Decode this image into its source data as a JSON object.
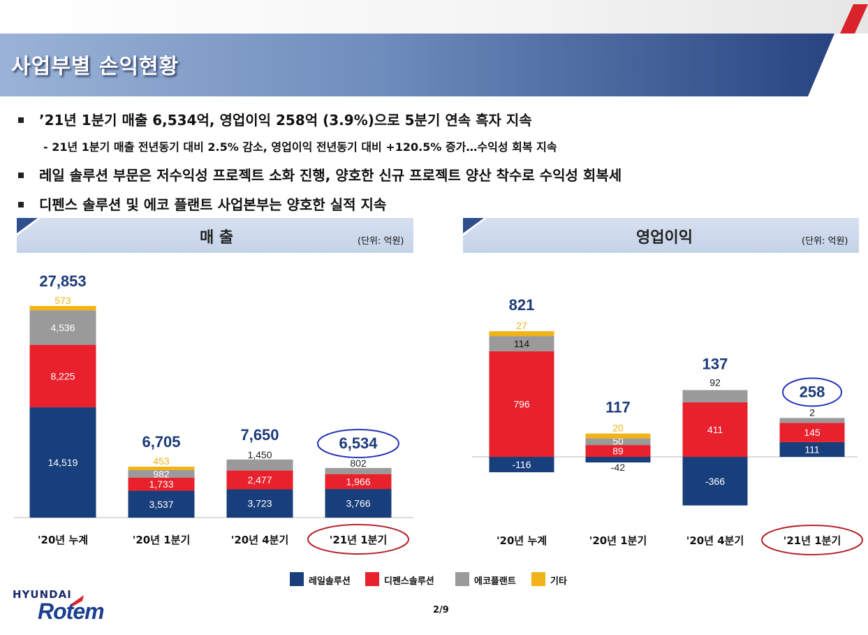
{
  "page": {
    "title": "사업부별 손익현황",
    "page_number": "2/9",
    "logo_top": "HYUNDAI",
    "logo_main": "Rotem"
  },
  "bullets": [
    "’21년 1분기 매출 6,534억, 영업이익 258억 (3.9%)으로 5분기 연속 흑자 지속",
    "- 21년 1분기 매출 전년동기 대비 2.5% 감소, 영업이익 전년동기 대비 +120.5% 증가…수익성 회복 지속",
    "레일 솔루션 부문은 저수익성 프로젝트 소화 진행, 양호한 신규 프로젝트 양산 착수로 수익성 회복세",
    "디펜스 솔루션 및 에코 플랜트 사업본부는 양호한 실적 지속"
  ],
  "colors": {
    "rail": "#183f7c",
    "defense": "#e8212d",
    "eco": "#9a9a9a",
    "other": "#f2b316",
    "highlight_blue": "#2433b8",
    "highlight_red": "#b5232b",
    "total_label": "#1b3a78"
  },
  "legend": [
    {
      "key": "rail",
      "label": "레일솔루션"
    },
    {
      "key": "defense",
      "label": "디펜스솔루션"
    },
    {
      "key": "eco",
      "label": "에코플랜트"
    },
    {
      "key": "other",
      "label": "기타"
    }
  ],
  "chart_data": [
    {
      "type": "bar",
      "stacked": true,
      "title": "매 출",
      "unit": "(단위: 억원)",
      "categories": [
        "'20년 누계",
        "'20년 1분기",
        "'20년 4분기",
        "'21년 1분기"
      ],
      "series": [
        {
          "name": "레일솔루션",
          "key": "rail",
          "values": [
            14519,
            3537,
            3723,
            3766
          ]
        },
        {
          "name": "디펜스솔루션",
          "key": "defense",
          "values": [
            8225,
            1733,
            2477,
            1966
          ]
        },
        {
          "name": "에코플랜트",
          "key": "eco",
          "values": [
            4536,
            982,
            1450,
            802
          ]
        },
        {
          "name": "기타",
          "key": "other",
          "values": [
            573,
            453,
            null,
            null
          ]
        }
      ],
      "totals": [
        27853,
        6705,
        7650,
        6534
      ],
      "highlight_total_index": 3,
      "highlight_category_index": 3
    },
    {
      "type": "bar",
      "stacked": true,
      "title": "영업이익",
      "unit": "(단위: 억원)",
      "categories": [
        "'20년 누계",
        "'20년 1분기",
        "'20년 4분기",
        "'21년 1분기"
      ],
      "series": [
        {
          "name": "레일솔루션",
          "key": "rail",
          "values": [
            -116,
            -42,
            -366,
            111
          ]
        },
        {
          "name": "디펜스솔루션",
          "key": "defense",
          "values": [
            796,
            89,
            411,
            145
          ]
        },
        {
          "name": "에코플랜트",
          "key": "eco",
          "values": [
            114,
            50,
            92,
            2
          ]
        },
        {
          "name": "기타",
          "key": "other",
          "values": [
            27,
            20,
            null,
            null
          ]
        }
      ],
      "totals": [
        821,
        117,
        137,
        258
      ],
      "highlight_total_index": 3,
      "highlight_category_index": 3
    }
  ]
}
